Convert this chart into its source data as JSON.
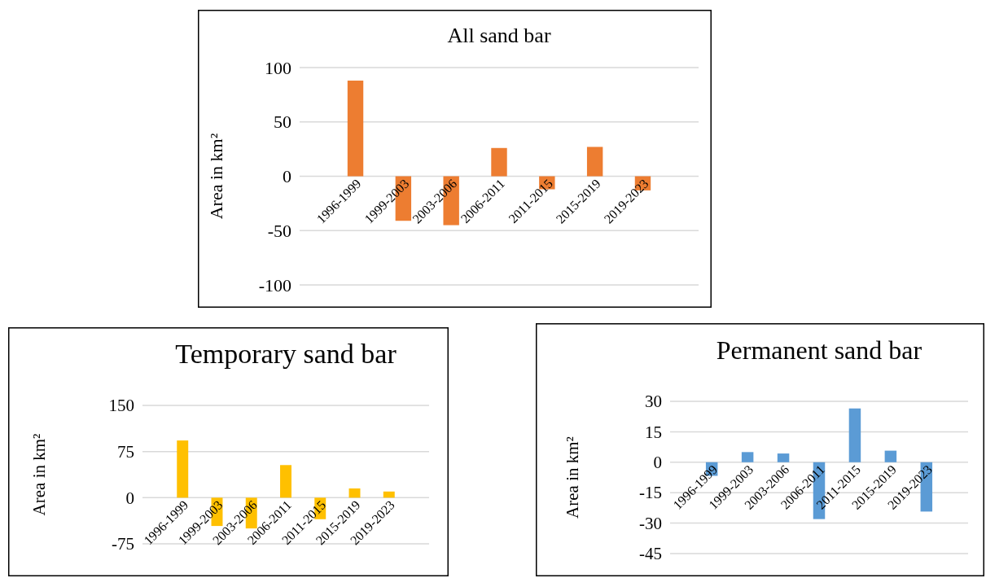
{
  "chart_data": [
    {
      "type": "bar",
      "title": "All sand bar",
      "ylabel": "Area in km²",
      "categories": [
        "1996-1999",
        "1999-2003",
        "2003-2006",
        "2006-2011",
        "2011-2015",
        "2015-2019",
        "2019-2023"
      ],
      "values": [
        88,
        -41,
        -45,
        26,
        -12,
        27,
        -13
      ],
      "color": "#ed7d31",
      "ylim": [
        -100,
        100
      ],
      "yticks": [
        -100,
        -50,
        0,
        50,
        100
      ],
      "grid": "y"
    },
    {
      "type": "bar",
      "title": "Temporary sand bar",
      "ylabel": "Area in km²",
      "categories": [
        "1996-1999",
        "1999-2003",
        "2003-2006",
        "2006-2011",
        "2011-2015",
        "2015-2019",
        "2019-2023"
      ],
      "values": [
        93,
        -46,
        -50,
        53,
        -35,
        15,
        10
      ],
      "color": "#ffc000",
      "ylim": [
        -75,
        150
      ],
      "yticks": [
        -75,
        0,
        75,
        150
      ],
      "grid": "y"
    },
    {
      "type": "bar",
      "title": "Permanent sand bar",
      "ylabel": "Area in km²",
      "categories": [
        "1996-1999",
        "1999-2003",
        "2003-2006",
        "2006-2011",
        "2011-2015",
        "2015-2019",
        "2019-2023"
      ],
      "values": [
        -6.7,
        5,
        4.3,
        -28,
        26.5,
        5.7,
        -24.3
      ],
      "color": "#5b9bd5",
      "ylim": [
        -45,
        30
      ],
      "yticks": [
        -45,
        -30,
        -15,
        0,
        15,
        30
      ],
      "grid": "y"
    }
  ]
}
